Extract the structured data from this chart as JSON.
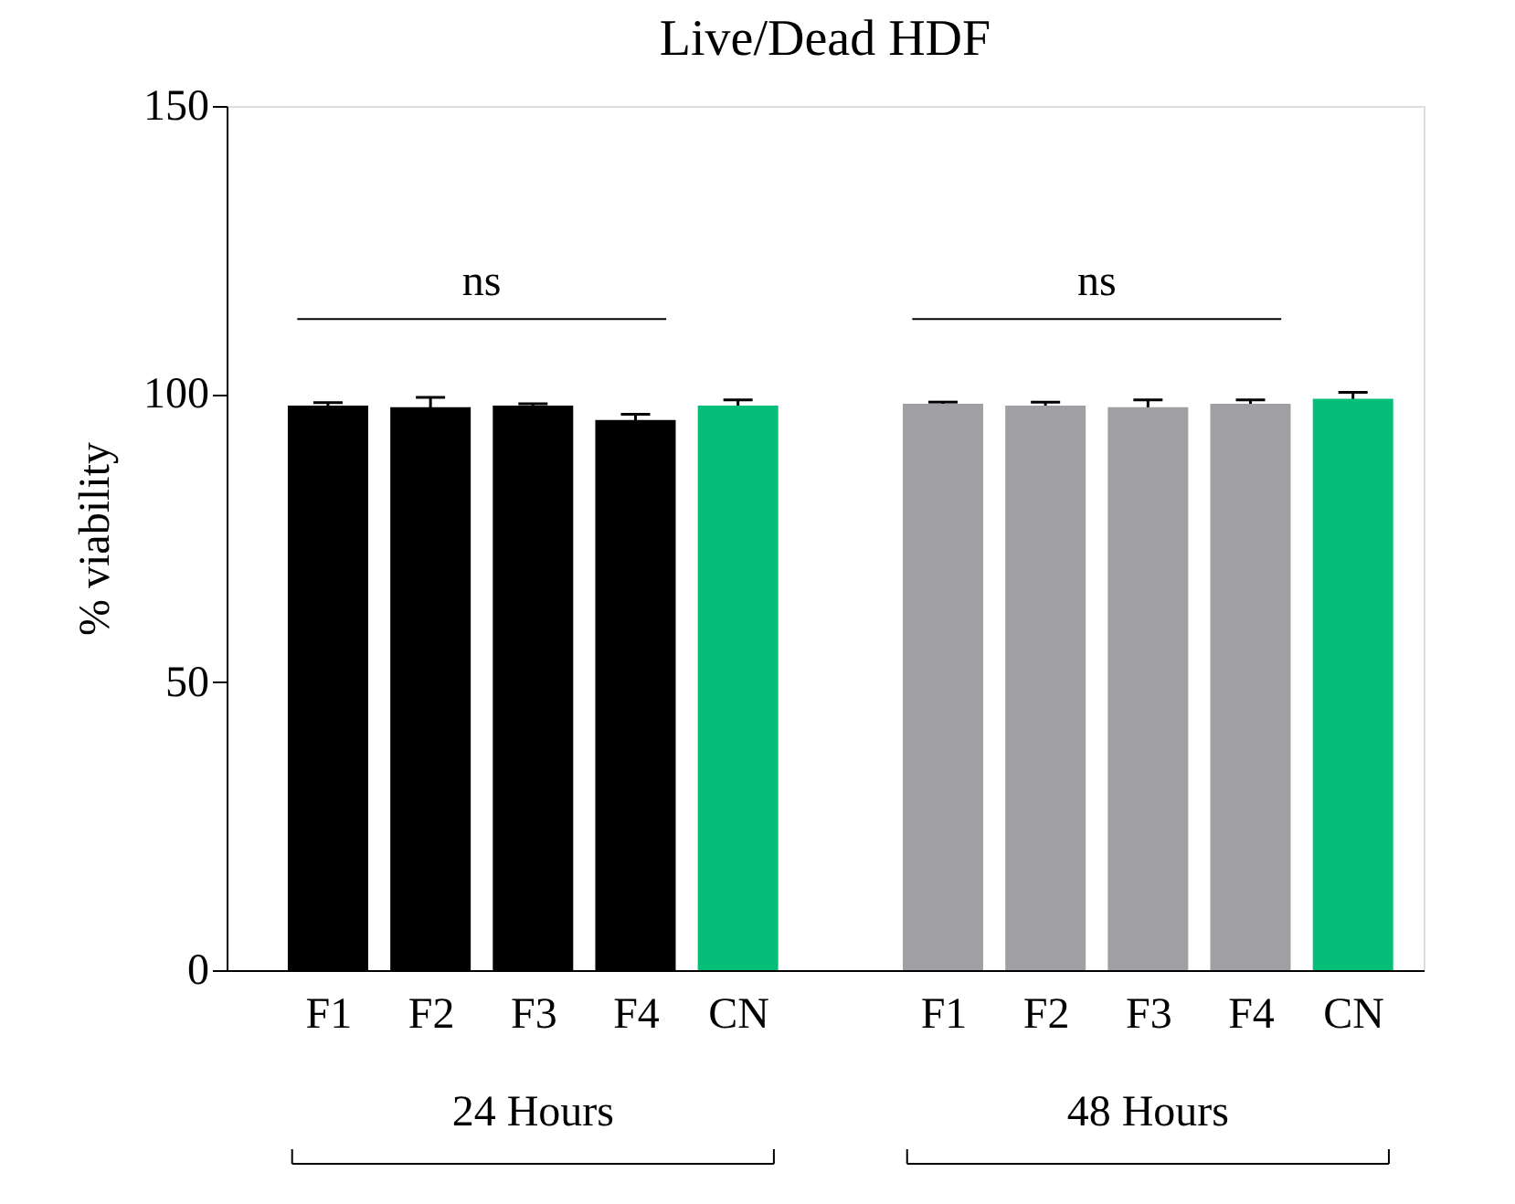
{
  "chart_data": {
    "type": "bar",
    "title": "Live/Dead HDF",
    "ylabel": "% viability",
    "categories": [
      "F1",
      "F2",
      "F3",
      "F4",
      "CN",
      "F1",
      "F2",
      "F3",
      "F4",
      "CN"
    ],
    "values": [
      98.0,
      97.7,
      98.0,
      95.5,
      98.0,
      98.3,
      98.0,
      97.7,
      98.3,
      99.2
    ],
    "errors": [
      0.5,
      1.7,
      0.3,
      1.0,
      1.0,
      0.3,
      0.6,
      1.3,
      0.7,
      1.1
    ],
    "colors": [
      "#000000",
      "#000000",
      "#000000",
      "#000000",
      "#07be78",
      "#a0a0a4",
      "#a0a0a4",
      "#a0a0a4",
      "#a0a0a4",
      "#07be78"
    ],
    "ylim": [
      0,
      150
    ],
    "yticks": [
      0,
      50,
      100,
      150
    ],
    "grid": false,
    "annotations": [
      "ns",
      "ns",
      "24 Hours",
      "48 Hours"
    ]
  }
}
